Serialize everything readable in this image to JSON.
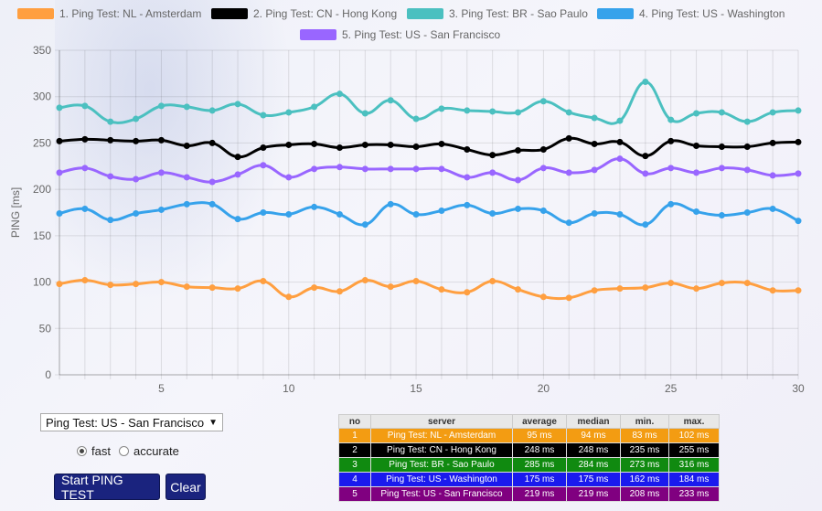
{
  "legend": [
    {
      "label": "1. Ping Test: NL - Amsterdam",
      "color": "#ff9f40"
    },
    {
      "label": "2. Ping Test: CN - Hong Kong",
      "color": "#000000"
    },
    {
      "label": "3. Ping Test: BR - Sao Paulo",
      "color": "#4bc0c0"
    },
    {
      "label": "4. Ping Test: US - Washington",
      "color": "#36a2eb"
    },
    {
      "label": "5. Ping Test: US - San Francisco",
      "color": "#9966ff"
    }
  ],
  "chart_data": {
    "type": "line",
    "ylabel": "PING [ms]",
    "ylim": [
      0,
      350
    ],
    "yticks": [
      0,
      50,
      100,
      150,
      200,
      250,
      300,
      350
    ],
    "xlim": [
      1,
      30
    ],
    "xticks": [
      5,
      10,
      15,
      20,
      25,
      30
    ],
    "grid": true,
    "x": [
      1,
      2,
      3,
      4,
      5,
      6,
      7,
      8,
      9,
      10,
      11,
      12,
      13,
      14,
      15,
      16,
      17,
      18,
      19,
      20,
      21,
      22,
      23,
      24,
      25,
      26,
      27,
      28,
      29,
      30
    ],
    "series": [
      {
        "name": "1. Ping Test: NL - Amsterdam",
        "color": "#ff9f40",
        "values": [
          98,
          102,
          97,
          98,
          100,
          95,
          94,
          93,
          101,
          84,
          94,
          90,
          102,
          95,
          101,
          92,
          89,
          101,
          92,
          84,
          83,
          91,
          93,
          94,
          99,
          93,
          99,
          99,
          91,
          91
        ]
      },
      {
        "name": "2. Ping Test: CN - Hong Kong",
        "color": "#000000",
        "values": [
          252,
          254,
          253,
          252,
          253,
          247,
          250,
          235,
          245,
          248,
          249,
          245,
          248,
          248,
          246,
          249,
          243,
          237,
          242,
          243,
          255,
          249,
          251,
          236,
          252,
          247,
          246,
          246,
          250,
          251
        ]
      },
      {
        "name": "3. Ping Test: BR - Sao Paulo",
        "color": "#4bc0c0",
        "values": [
          288,
          290,
          273,
          276,
          290,
          289,
          285,
          292,
          280,
          283,
          289,
          303,
          282,
          296,
          276,
          287,
          285,
          284,
          283,
          295,
          283,
          277,
          274,
          316,
          275,
          282,
          283,
          273,
          283,
          285
        ]
      },
      {
        "name": "4. Ping Test: US - Washington",
        "color": "#36a2eb",
        "values": [
          174,
          179,
          167,
          174,
          178,
          184,
          184,
          168,
          175,
          173,
          181,
          173,
          162,
          184,
          173,
          177,
          183,
          174,
          179,
          177,
          164,
          174,
          173,
          162,
          184,
          176,
          172,
          175,
          179,
          166
        ]
      },
      {
        "name": "5. Ping Test: US - San Francisco",
        "color": "#9966ff",
        "values": [
          218,
          223,
          214,
          211,
          218,
          213,
          208,
          216,
          226,
          213,
          222,
          224,
          222,
          222,
          222,
          222,
          213,
          218,
          210,
          223,
          218,
          221,
          233,
          217,
          223,
          218,
          223,
          221,
          215,
          217
        ]
      }
    ]
  },
  "controls": {
    "server_select": "Ping Test: US - San Francisco",
    "mode_fast": "fast",
    "mode_accurate": "accurate",
    "start_button": "Start PING TEST",
    "clear_button": "Clear"
  },
  "results_table": {
    "headers": [
      "no",
      "server",
      "average",
      "median",
      "min.",
      "max."
    ],
    "rows": [
      {
        "no": "1",
        "server": "Ping Test: NL - Amsterdam",
        "average": "95 ms",
        "median": "94 ms",
        "min": "83 ms",
        "max": "102 ms",
        "color": "#f39c12"
      },
      {
        "no": "2",
        "server": "Ping Test: CN - Hong Kong",
        "average": "248 ms",
        "median": "248 ms",
        "min": "235 ms",
        "max": "255 ms",
        "color": "#000000"
      },
      {
        "no": "3",
        "server": "Ping Test: BR - Sao Paulo",
        "average": "285 ms",
        "median": "284 ms",
        "min": "273 ms",
        "max": "316 ms",
        "color": "#108a10"
      },
      {
        "no": "4",
        "server": "Ping Test: US - Washington",
        "average": "175 ms",
        "median": "175 ms",
        "min": "162 ms",
        "max": "184 ms",
        "color": "#1a1aee"
      },
      {
        "no": "5",
        "server": "Ping Test: US - San Francisco",
        "average": "219 ms",
        "median": "219 ms",
        "min": "208 ms",
        "max": "233 ms",
        "color": "#800080"
      }
    ]
  }
}
